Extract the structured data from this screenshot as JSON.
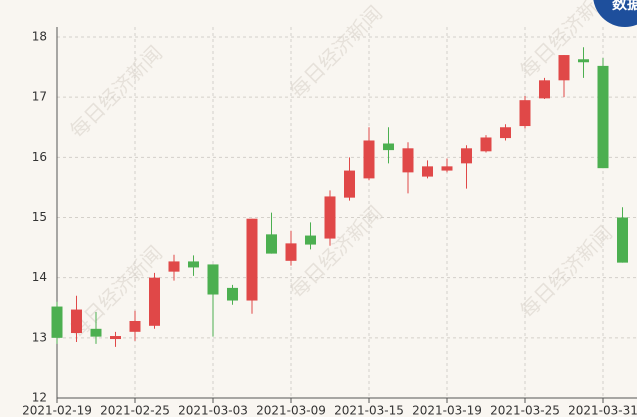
{
  "chart_data": {
    "type": "candlestick",
    "categories": [
      "2021-02-19",
      null,
      null,
      null,
      "2021-02-25",
      null,
      null,
      null,
      "2021-03-03",
      null,
      null,
      null,
      "2021-03-09",
      null,
      null,
      null,
      "2021-03-15",
      null,
      null,
      null,
      "2021-03-19",
      null,
      null,
      null,
      "2021-03-25",
      null,
      null,
      null,
      "2021-03-31",
      null
    ],
    "open": [
      13.52,
      13.08,
      13.15,
      12.98,
      13.1,
      13.2,
      14.1,
      14.27,
      14.22,
      13.83,
      13.62,
      14.72,
      14.28,
      14.7,
      14.65,
      15.33,
      15.65,
      16.23,
      15.75,
      15.68,
      15.78,
      15.9,
      16.1,
      16.32,
      16.52,
      16.98,
      17.28,
      17.63,
      17.52,
      15.0
    ],
    "high": [
      13.6,
      13.7,
      13.43,
      13.1,
      13.45,
      14.08,
      14.38,
      14.37,
      14.22,
      13.88,
      14.98,
      15.08,
      14.78,
      14.92,
      15.45,
      16.0,
      16.5,
      16.5,
      16.25,
      15.95,
      15.98,
      16.2,
      16.37,
      16.55,
      17.02,
      17.32,
      17.7,
      17.83,
      17.65,
      15.17
    ],
    "low": [
      12.9,
      12.93,
      12.9,
      12.85,
      12.95,
      13.15,
      13.95,
      14.03,
      13.02,
      13.55,
      13.4,
      14.4,
      14.2,
      14.47,
      14.53,
      15.28,
      15.62,
      15.9,
      15.4,
      15.65,
      15.75,
      15.48,
      16.08,
      16.28,
      16.48,
      16.97,
      17.0,
      17.32,
      15.82,
      14.25
    ],
    "close": [
      13.0,
      13.47,
      13.02,
      13.03,
      13.28,
      14.0,
      14.27,
      14.17,
      13.72,
      13.62,
      14.98,
      14.4,
      14.57,
      14.55,
      15.35,
      15.78,
      16.28,
      16.12,
      16.15,
      15.85,
      15.85,
      16.15,
      16.33,
      16.5,
      16.95,
      17.28,
      17.7,
      17.58,
      15.82,
      14.25
    ],
    "up_color": "#e04848",
    "down_color": "#4caf50",
    "ylim": [
      12,
      18
    ],
    "yticks": [
      12,
      13,
      14,
      15,
      16,
      17,
      18
    ],
    "grid": true,
    "watermark": "每日经济新闻",
    "logo": "数据"
  }
}
